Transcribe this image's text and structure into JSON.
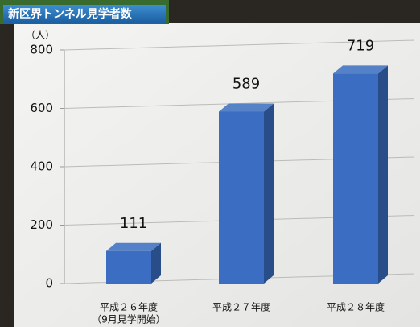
{
  "chart_data": {
    "type": "bar3d",
    "title": "新区界トンネル見学者数",
    "y_label": "（人）",
    "categories": [
      "平成２６年度",
      "平成２７年度",
      "平成２８年度"
    ],
    "annotations": [
      "（9月見学開始）"
    ],
    "values": [
      111,
      589,
      719
    ],
    "color": "#3b6ec2",
    "ylim": [
      0,
      800
    ],
    "yticks": [
      0,
      200,
      400,
      600,
      800
    ],
    "grid": true
  }
}
